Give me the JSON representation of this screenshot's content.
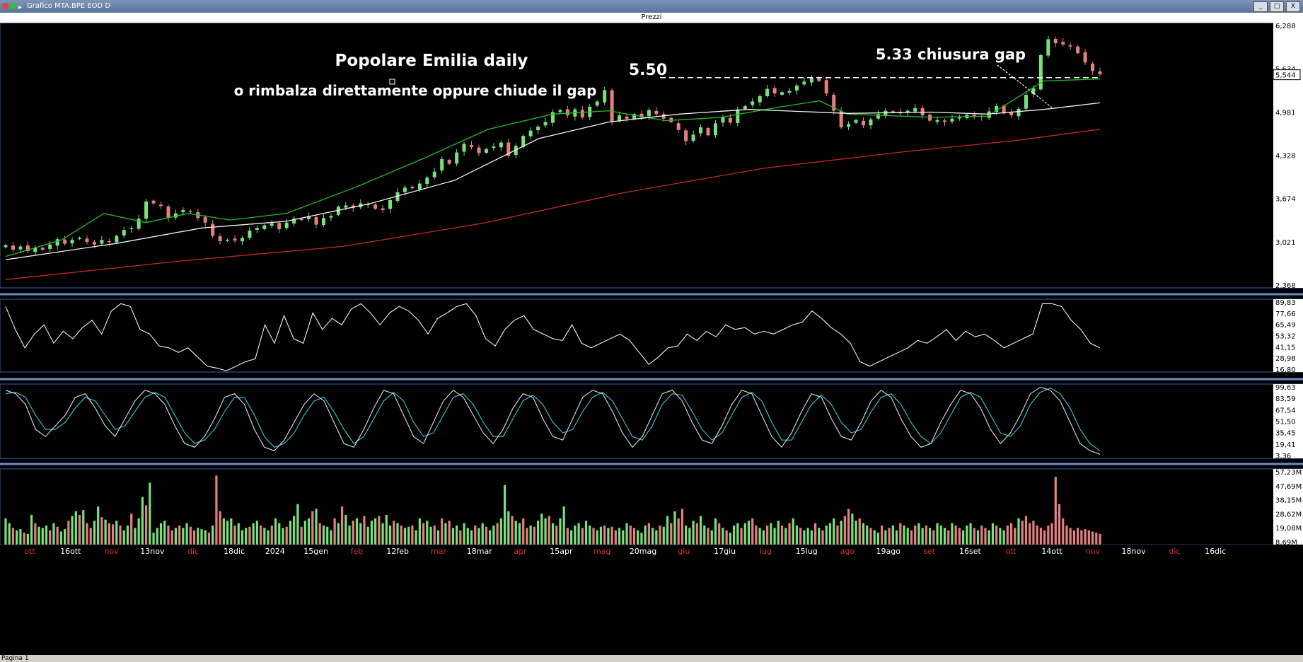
{
  "window": {
    "title": "Grafico MTA.BPE EOD D",
    "panel_title": "Prezzi",
    "buttons": [
      "_",
      "□",
      "X"
    ],
    "footer_tab": "Pagina 1"
  },
  "annotations": {
    "title": "Popolare Emilia daily",
    "subtitle": "o rimbalza direttamente oppure chiude il gap",
    "level_label": "5.50",
    "gap_label": "5.33 chiusura gap"
  },
  "colors": {
    "up": "#7be07b",
    "down": "#e68080",
    "ma_fast": "#1fbf1f",
    "ma_mid": "#f0f0f0",
    "ma_slow": "#c0282d",
    "stoch_k": "#e0e0e0",
    "stoch_d": "#3ec8d8",
    "panel_border": "#3a5fa8"
  },
  "chart_data": [
    {
      "panel": "Prezzi",
      "type": "candlestick",
      "ylim": [
        2.368,
        6.288
      ],
      "yticks": [
        "6,288",
        "5,634",
        "4,981",
        "4,328",
        "3,674",
        "3,021",
        "2,368"
      ],
      "current_value": "5,544",
      "resistance_level": 5.5,
      "x_labels": [
        "ott",
        "16ott",
        "nov",
        "13nov",
        "dic",
        "18dic",
        "2024",
        "15gen",
        "feb",
        "12feb",
        "mar",
        "18mar",
        "apr",
        "15apr",
        "mag",
        "20mag",
        "giu",
        "17giu",
        "lug",
        "15lug",
        "ago",
        "19ago",
        "set",
        "16set",
        "ott",
        "14ott",
        "nov",
        "18nov",
        "dic",
        "16dic"
      ],
      "closes": [
        2.97,
        2.9,
        2.95,
        2.88,
        2.93,
        2.9,
        2.98,
        3.06,
        2.99,
        3.05,
        3.08,
        3.02,
        2.98,
        3.05,
        3.02,
        3.11,
        3.2,
        3.23,
        3.37,
        3.63,
        3.6,
        3.56,
        3.38,
        3.45,
        3.5,
        3.47,
        3.38,
        3.31,
        3.11,
        3.03,
        3.05,
        3.04,
        3.08,
        3.19,
        3.23,
        3.27,
        3.3,
        3.21,
        3.31,
        3.37,
        3.35,
        3.41,
        3.28,
        3.38,
        3.41,
        3.55,
        3.57,
        3.53,
        3.6,
        3.59,
        3.52,
        3.5,
        3.65,
        3.77,
        3.84,
        3.83,
        3.9,
        3.99,
        4.08,
        4.27,
        4.2,
        4.37,
        4.5,
        4.45,
        4.36,
        4.42,
        4.46,
        4.52,
        4.32,
        4.47,
        4.62,
        4.7,
        4.76,
        4.83,
        4.98,
        5.01,
        4.93,
        5.02,
        4.9,
        5.06,
        5.14,
        5.31,
        4.84,
        4.93,
        4.88,
        4.95,
        4.9,
        5.01,
        4.95,
        4.88,
        4.83,
        4.71,
        4.54,
        4.64,
        4.75,
        4.63,
        4.81,
        4.91,
        4.82,
        5.02,
        5.07,
        5.14,
        5.22,
        5.33,
        5.26,
        5.28,
        5.3,
        5.38,
        5.44,
        5.5,
        5.45,
        5.26,
        5.0,
        4.75,
        4.8,
        4.86,
        4.78,
        4.87,
        4.95,
        5.0,
        4.98,
        4.96,
        5.0,
        5.04,
        4.93,
        4.85,
        4.86,
        4.83,
        4.88,
        4.9,
        4.94,
        4.91,
        4.91,
        4.99,
        5.07,
        4.96,
        4.93,
        5.03,
        5.24,
        5.34,
        5.84,
        6.08,
        6.02,
        6.0,
        5.97,
        5.87,
        5.73,
        5.6,
        5.55
      ],
      "moving_averages": [
        {
          "name": "MA20",
          "color_key": "ma_fast",
          "points": [
            [
              0,
              2.8
            ],
            [
              20,
              3.05
            ],
            [
              35,
              3.45
            ],
            [
              50,
              3.31
            ],
            [
              65,
              3.45
            ],
            [
              80,
              3.35
            ],
            [
              100,
              3.45
            ],
            [
              125,
              3.85
            ],
            [
              150,
              4.3
            ],
            [
              172,
              4.72
            ],
            [
              195,
              4.95
            ],
            [
              215,
              5.0
            ],
            [
              235,
              4.85
            ],
            [
              255,
              4.9
            ],
            [
              275,
              5.05
            ],
            [
              290,
              5.15
            ],
            [
              300,
              4.95
            ],
            [
              330,
              4.9
            ],
            [
              350,
              4.92
            ],
            [
              370,
              5.45
            ],
            [
              390,
              5.48
            ]
          ]
        },
        {
          "name": "MA50",
          "color_key": "ma_mid",
          "points": [
            [
              0,
              2.75
            ],
            [
              40,
              3.0
            ],
            [
              70,
              3.23
            ],
            [
              100,
              3.33
            ],
            [
              130,
              3.6
            ],
            [
              160,
              3.95
            ],
            [
              190,
              4.58
            ],
            [
              215,
              4.83
            ],
            [
              240,
              4.95
            ],
            [
              265,
              5.02
            ],
            [
              300,
              4.96
            ],
            [
              330,
              4.98
            ],
            [
              350,
              4.95
            ],
            [
              370,
              5.02
            ],
            [
              390,
              5.12
            ]
          ]
        },
        {
          "name": "MA200",
          "color_key": "ma_slow",
          "points": [
            [
              0,
              2.45
            ],
            [
              60,
              2.72
            ],
            [
              120,
              2.95
            ],
            [
              170,
              3.3
            ],
            [
              220,
              3.76
            ],
            [
              270,
              4.13
            ],
            [
              320,
              4.38
            ],
            [
              360,
              4.55
            ],
            [
              390,
              4.72
            ]
          ]
        }
      ]
    },
    {
      "panel": "RSI",
      "type": "line",
      "ylim": [
        16.8,
        89.83
      ],
      "yticks": [
        "89,83",
        "77,66",
        "65,49",
        "53,32",
        "41,15",
        "28,98",
        "16,80"
      ],
      "values": [
        85,
        60,
        40,
        55,
        65,
        45,
        58,
        50,
        62,
        70,
        55,
        80,
        88,
        85,
        60,
        55,
        42,
        40,
        35,
        40,
        30,
        20,
        18,
        15,
        20,
        25,
        28,
        65,
        45,
        75,
        50,
        45,
        78,
        60,
        72,
        65,
        82,
        88,
        78,
        65,
        78,
        85,
        80,
        70,
        55,
        72,
        78,
        85,
        88,
        75,
        50,
        42,
        60,
        70,
        75,
        60,
        55,
        50,
        48,
        65,
        45,
        40,
        45,
        50,
        55,
        48,
        35,
        22,
        30,
        40,
        42,
        55,
        48,
        58,
        52,
        65,
        60,
        62,
        55,
        58,
        55,
        60,
        65,
        68,
        80,
        72,
        62,
        55,
        45,
        25,
        20,
        25,
        30,
        35,
        40,
        48,
        45,
        52,
        60,
        48,
        58,
        52,
        55,
        48,
        40,
        45,
        50,
        55,
        88,
        88,
        85,
        70,
        60,
        45,
        40
      ]
    },
    {
      "panel": "Stocastico",
      "type": "line",
      "ylim": [
        3.36,
        99.63
      ],
      "yticks": [
        "99,63",
        "83,59",
        "67,54",
        "51,50",
        "35,45",
        "19,41",
        "3,36"
      ],
      "series": [
        {
          "name": "%K",
          "color_key": "stoch_k",
          "values": [
            95,
            90,
            75,
            40,
            30,
            45,
            60,
            85,
            90,
            70,
            45,
            30,
            55,
            80,
            95,
            90,
            75,
            45,
            20,
            15,
            30,
            55,
            85,
            90,
            75,
            40,
            15,
            10,
            25,
            50,
            75,
            90,
            80,
            50,
            20,
            15,
            40,
            70,
            95,
            90,
            60,
            30,
            20,
            50,
            80,
            95,
            85,
            60,
            35,
            20,
            40,
            70,
            90,
            85,
            55,
            30,
            25,
            55,
            85,
            95,
            90,
            65,
            35,
            15,
            30,
            60,
            90,
            95,
            80,
            50,
            25,
            20,
            45,
            75,
            95,
            90,
            60,
            30,
            15,
            35,
            65,
            90,
            85,
            55,
            30,
            25,
            50,
            80,
            95,
            85,
            55,
            30,
            15,
            20,
            50,
            75,
            95,
            90,
            70,
            40,
            20,
            35,
            60,
            90,
            99,
            95,
            80,
            50,
            20,
            10,
            5
          ]
        },
        {
          "name": "%D",
          "color_key": "stoch_d",
          "values": [
            90,
            92,
            85,
            60,
            40,
            40,
            50,
            70,
            85,
            80,
            60,
            40,
            45,
            65,
            85,
            92,
            85,
            60,
            35,
            20,
            25,
            40,
            65,
            85,
            85,
            60,
            30,
            15,
            20,
            35,
            60,
            80,
            85,
            65,
            40,
            20,
            30,
            55,
            80,
            92,
            80,
            50,
            30,
            35,
            60,
            85,
            90,
            75,
            50,
            30,
            30,
            55,
            80,
            88,
            75,
            50,
            35,
            40,
            65,
            85,
            92,
            80,
            55,
            30,
            25,
            45,
            75,
            90,
            88,
            65,
            40,
            25,
            35,
            60,
            85,
            92,
            80,
            50,
            25,
            25,
            50,
            75,
            88,
            75,
            50,
            35,
            40,
            65,
            85,
            90,
            75,
            50,
            30,
            20,
            35,
            60,
            85,
            92,
            85,
            60,
            35,
            30,
            45,
            75,
            92,
            98,
            90,
            70,
            40,
            20,
            10
          ]
        }
      ]
    },
    {
      "panel": "Volume",
      "type": "bar",
      "ylim": [
        0,
        60
      ],
      "yticks": [
        "57,23M",
        "47,69M",
        "38,15M",
        "28,62M",
        "19,08M",
        "8,69M"
      ],
      "unit": "M",
      "values": [
        22,
        18,
        14,
        12,
        13,
        10,
        9,
        25,
        18,
        15,
        14,
        16,
        12,
        18,
        15,
        11,
        13,
        20,
        24,
        28,
        25,
        29,
        18,
        14,
        20,
        32,
        23,
        21,
        18,
        17,
        20,
        16,
        12,
        16,
        26,
        14,
        22,
        40,
        33,
        52,
        10,
        14,
        18,
        20,
        16,
        12,
        14,
        16,
        14,
        18,
        15,
        12,
        14,
        13,
        12,
        10,
        16,
        58,
        28,
        22,
        20,
        22,
        16,
        18,
        12,
        14,
        15,
        18,
        20,
        16,
        14,
        12,
        16,
        22,
        18,
        14,
        15,
        20,
        24,
        34,
        15,
        20,
        22,
        28,
        30,
        18,
        16,
        15,
        12,
        22,
        18,
        32,
        25,
        16,
        20,
        22,
        18,
        24,
        15,
        20,
        22,
        24,
        18,
        25,
        16,
        20,
        18,
        16,
        14,
        15,
        16,
        12,
        22,
        18,
        20,
        15,
        16,
        12,
        22,
        18,
        20,
        14,
        16,
        12,
        18,
        14,
        12,
        16,
        14,
        18,
        15,
        12,
        16,
        18,
        22,
        50,
        28,
        24,
        20,
        18,
        22,
        14,
        16,
        15,
        20,
        26,
        22,
        24,
        18,
        16,
        22,
        32,
        14,
        12,
        16,
        18,
        14,
        20,
        16,
        14,
        12,
        15,
        16,
        14,
        15,
        12,
        14,
        12,
        18,
        16,
        14,
        12,
        10,
        16,
        18,
        14,
        12,
        16,
        15,
        24,
        18,
        28,
        22,
        30,
        16,
        14,
        20,
        18,
        24,
        16,
        14,
        12,
        22,
        18,
        14,
        12,
        10,
        16,
        18,
        14,
        18,
        20,
        22,
        16,
        14,
        12,
        16,
        18,
        14,
        20,
        16,
        14,
        18,
        22,
        16,
        14,
        12,
        14,
        12,
        18,
        14,
        12,
        16,
        18,
        22,
        16,
        20,
        24,
        30,
        26,
        20,
        22,
        18,
        16,
        14,
        12,
        10,
        16,
        12,
        14,
        16,
        12,
        18,
        16,
        14,
        12,
        16,
        18,
        14,
        16,
        14,
        12,
        18,
        16,
        14,
        12,
        18,
        16,
        14,
        12,
        16,
        18,
        14,
        12,
        16,
        14,
        12,
        18,
        16,
        14,
        12,
        16,
        18,
        14,
        22,
        20,
        24,
        18,
        20,
        16,
        14,
        12,
        16,
        18,
        57,
        34,
        22,
        16,
        14,
        12,
        14,
        12,
        13,
        12,
        11,
        10,
        9
      ],
      "up": [
        1,
        1,
        0,
        1,
        1,
        0,
        1,
        1,
        0,
        1,
        1,
        1,
        0,
        1,
        0,
        1,
        1,
        0,
        1,
        1,
        0,
        1,
        0,
        0,
        1,
        1,
        0,
        1,
        0,
        0,
        1,
        0,
        1,
        1,
        0,
        1,
        1,
        1,
        0,
        1,
        1,
        1,
        1,
        1,
        0,
        0,
        1,
        0,
        1,
        1,
        0,
        0,
        1,
        1,
        1,
        0,
        1,
        0,
        0,
        1,
        1,
        1,
        0,
        1,
        1,
        1,
        0,
        1,
        1,
        0,
        1,
        1,
        0,
        1,
        1,
        1,
        0,
        1,
        1,
        1,
        0,
        1,
        1,
        0,
        1,
        0,
        1,
        1,
        1,
        0,
        1,
        0,
        1,
        1,
        0,
        1,
        1,
        0,
        1,
        1,
        1,
        0,
        1,
        1,
        1,
        0,
        1,
        0,
        1,
        1,
        0,
        1,
        1,
        0,
        1,
        1,
        0,
        1,
        0,
        1,
        0,
        1,
        1,
        0,
        1,
        1,
        1,
        0,
        1,
        1,
        0,
        1,
        1,
        0,
        1,
        1,
        1,
        0,
        1,
        1,
        0,
        0,
        1,
        0,
        1,
        1,
        1,
        0,
        1,
        0,
        1,
        1,
        0,
        1,
        1,
        1,
        0,
        1,
        1,
        0,
        1,
        1,
        0,
        1,
        0,
        0,
        1,
        1,
        1,
        0,
        0,
        1,
        1,
        1,
        0,
        1,
        1,
        0,
        1,
        1,
        0,
        1,
        0,
        0,
        1,
        1,
        1,
        0,
        1,
        1,
        0,
        1,
        1,
        0,
        1,
        0,
        1,
        1,
        1,
        0,
        1,
        1,
        0,
        0,
        1,
        1,
        0,
        1,
        1,
        1,
        0,
        1,
        0,
        1,
        1,
        0,
        1,
        1,
        1,
        0,
        1,
        0,
        1,
        1,
        1,
        0,
        1,
        0,
        0,
        1,
        1,
        0,
        1,
        1,
        0,
        1,
        1,
        0,
        1,
        0,
        1,
        1,
        0,
        1,
        1,
        0,
        0,
        1,
        1,
        0,
        1,
        0,
        1,
        1,
        1,
        0,
        1,
        0,
        0,
        1,
        1,
        1,
        0,
        1,
        0,
        0,
        1,
        1,
        0,
        1,
        1,
        0,
        0,
        0,
        1,
        0,
        0,
        0,
        0,
        0,
        0,
        0,
        0
      ]
    }
  ]
}
